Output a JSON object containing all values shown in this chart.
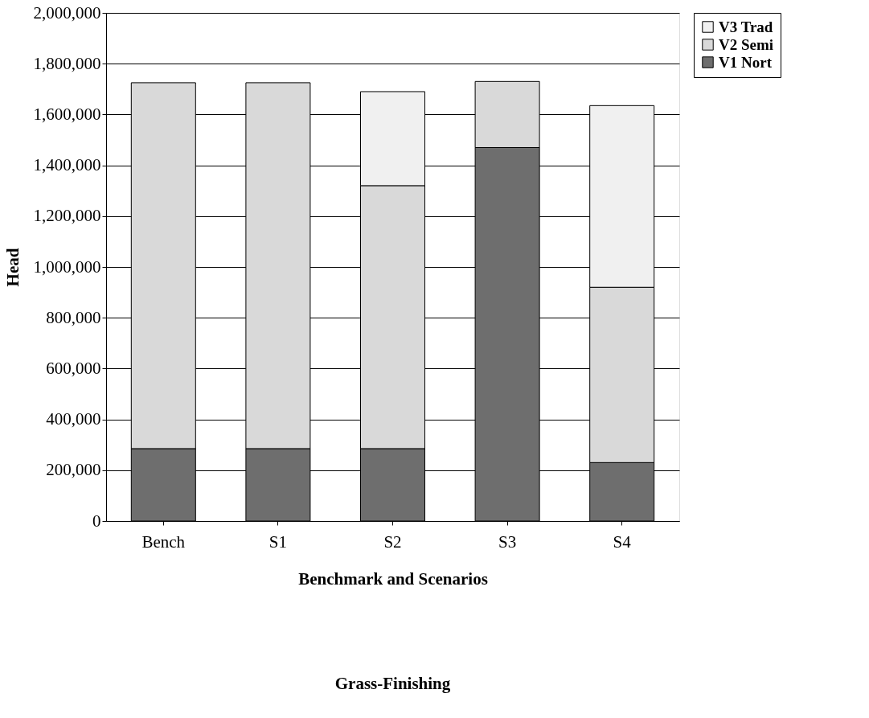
{
  "chart_data": {
    "type": "bar",
    "title": "Grass-Finishing",
    "xlabel": "Benchmark and Scenarios",
    "ylabel": "Head",
    "categories": [
      "Bench",
      "S1",
      "S2",
      "S3",
      "S4"
    ],
    "stacked": true,
    "series": [
      {
        "name": "V1 Nort",
        "color": "#6e6e6e",
        "values": [
          285000,
          285000,
          285000,
          1470000,
          230000
        ]
      },
      {
        "name": "V2 Semi",
        "color": "#d9d9d9",
        "values": [
          1440000,
          1440000,
          1035000,
          260000,
          690000
        ]
      },
      {
        "name": "V3 Trad",
        "color": "#f0f0f0",
        "values": [
          null,
          null,
          370000,
          null,
          715000
        ]
      }
    ],
    "ylim": [
      0,
      2000000
    ],
    "yticks": [
      0,
      {
        "value": 200000,
        "label": "200,000"
      },
      {
        "value": 400000,
        "label": "400,000"
      },
      {
        "value": 600000,
        "label": "600,000"
      },
      {
        "value": 800000,
        "label": "800,000"
      },
      {
        "value": 1000000,
        "label": "1,000,000"
      },
      {
        "value": 1200000,
        "label": "1,200,000"
      },
      {
        "value": 1400000,
        "label": "1,400,000"
      },
      {
        "value": 1600000,
        "label": "1,600,000"
      },
      {
        "value": 1800000,
        "label": "1,800,000"
      },
      {
        "value": 2000000,
        "label": "2,000,000"
      }
    ],
    "grid": "y",
    "legend": "right"
  }
}
